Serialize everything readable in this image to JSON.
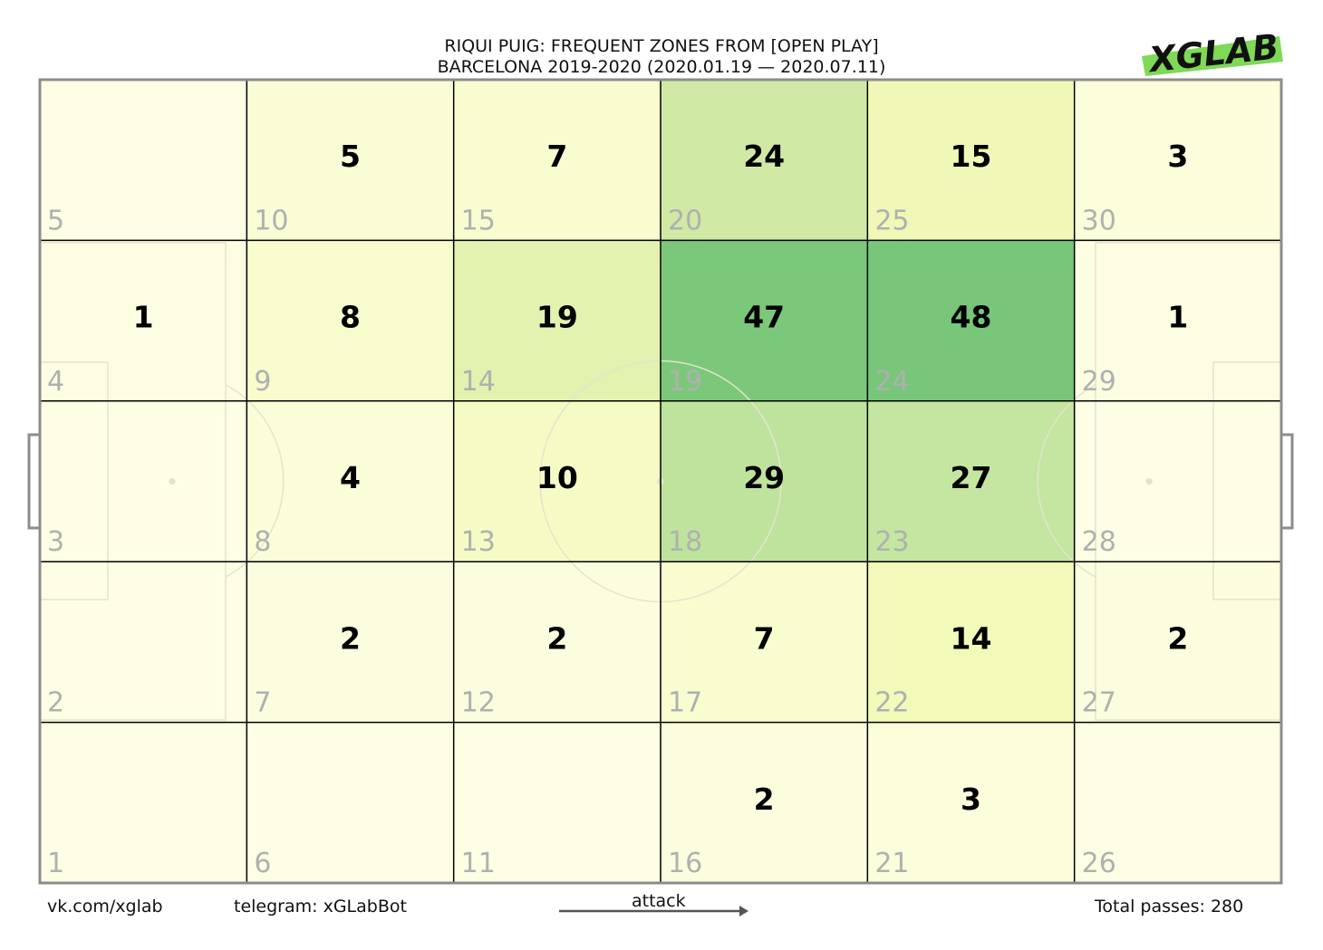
{
  "title": "RIQUI PUIG: FREQUENT ZONES FROM [OPEN PLAY]",
  "subtitle": "BARCELONA 2019-2020 (2020.01.19 — 2020.07.11)",
  "logo_text": "XGLAB",
  "footer": {
    "vk": "vk.com/xglab",
    "telegram": "telegram: xGLabBot",
    "attack": "attack",
    "total": "Total passes: 280"
  },
  "colors": {
    "low": "#fefee4",
    "mid": "#f3f9b8",
    "high": "#78c679",
    "logo_bar": "#7ed957",
    "zone_number": "#b0b0b0",
    "grid_line": "#000000",
    "pitch_border": "#8c8c8c"
  },
  "chart_data": {
    "type": "heatmap",
    "columns": 6,
    "rows": 5,
    "max_value": 48,
    "zones": [
      {
        "zone": 1,
        "col": 0,
        "row": 4,
        "value": 0
      },
      {
        "zone": 2,
        "col": 0,
        "row": 3,
        "value": 0
      },
      {
        "zone": 3,
        "col": 0,
        "row": 2,
        "value": 0
      },
      {
        "zone": 4,
        "col": 0,
        "row": 1,
        "value": 1
      },
      {
        "zone": 5,
        "col": 0,
        "row": 0,
        "value": 0
      },
      {
        "zone": 6,
        "col": 1,
        "row": 4,
        "value": 0
      },
      {
        "zone": 7,
        "col": 1,
        "row": 3,
        "value": 2
      },
      {
        "zone": 8,
        "col": 1,
        "row": 2,
        "value": 4
      },
      {
        "zone": 9,
        "col": 1,
        "row": 1,
        "value": 8
      },
      {
        "zone": 10,
        "col": 1,
        "row": 0,
        "value": 5
      },
      {
        "zone": 11,
        "col": 2,
        "row": 4,
        "value": 0
      },
      {
        "zone": 12,
        "col": 2,
        "row": 3,
        "value": 2
      },
      {
        "zone": 13,
        "col": 2,
        "row": 2,
        "value": 10
      },
      {
        "zone": 14,
        "col": 2,
        "row": 1,
        "value": 19
      },
      {
        "zone": 15,
        "col": 2,
        "row": 0,
        "value": 7
      },
      {
        "zone": 16,
        "col": 3,
        "row": 4,
        "value": 2
      },
      {
        "zone": 17,
        "col": 3,
        "row": 3,
        "value": 7
      },
      {
        "zone": 18,
        "col": 3,
        "row": 2,
        "value": 29
      },
      {
        "zone": 19,
        "col": 3,
        "row": 1,
        "value": 47
      },
      {
        "zone": 20,
        "col": 3,
        "row": 0,
        "value": 24
      },
      {
        "zone": 21,
        "col": 4,
        "row": 4,
        "value": 3
      },
      {
        "zone": 22,
        "col": 4,
        "row": 3,
        "value": 14
      },
      {
        "zone": 23,
        "col": 4,
        "row": 2,
        "value": 27
      },
      {
        "zone": 24,
        "col": 4,
        "row": 1,
        "value": 48
      },
      {
        "zone": 25,
        "col": 4,
        "row": 0,
        "value": 15
      },
      {
        "zone": 26,
        "col": 5,
        "row": 4,
        "value": 0
      },
      {
        "zone": 27,
        "col": 5,
        "row": 3,
        "value": 2
      },
      {
        "zone": 28,
        "col": 5,
        "row": 2,
        "value": 0
      },
      {
        "zone": 29,
        "col": 5,
        "row": 1,
        "value": 1
      },
      {
        "zone": 30,
        "col": 5,
        "row": 0,
        "value": 3
      }
    ]
  }
}
